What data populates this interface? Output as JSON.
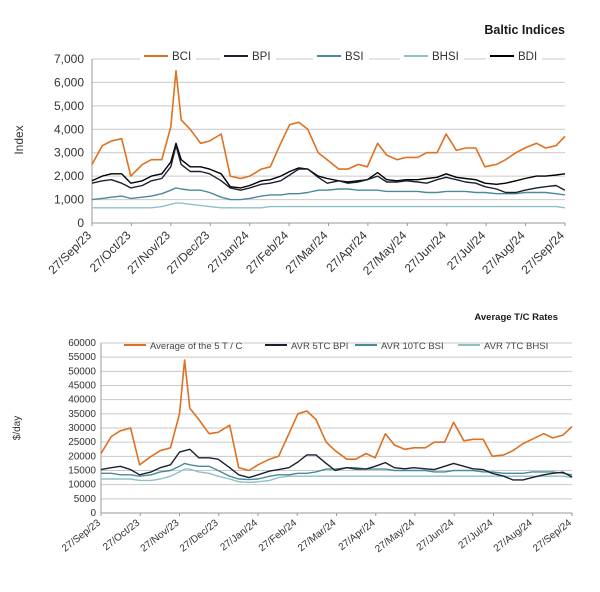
{
  "chart_data": [
    {
      "type": "line",
      "title": "Baltic Indices",
      "ylabel": "Index",
      "xlabel": "",
      "ylim": [
        0,
        7000
      ],
      "yticks": [
        "0",
        "1,000",
        "2,000",
        "3,000",
        "4,000",
        "5,000",
        "6,000",
        "7,000"
      ],
      "grid": true,
      "legend_position": "top",
      "x_ticks": [
        "27/Sep/23",
        "27/Oct/23",
        "27/Nov/23",
        "27/Dec/23",
        "27/Jan/24",
        "27/Feb/24",
        "27/Mar/24",
        "27/Apr/24",
        "27/May/24",
        "27/Jun/24",
        "27/Jul/24",
        "27/Aug/24",
        "27/Sep/24"
      ],
      "x": [
        "2023-09-27",
        "2023-10-05",
        "2023-10-12",
        "2023-10-20",
        "2023-10-27",
        "2023-11-05",
        "2023-11-12",
        "2023-11-20",
        "2023-11-27",
        "2023-12-01",
        "2023-12-05",
        "2023-12-12",
        "2023-12-20",
        "2023-12-27",
        "2024-01-05",
        "2024-01-12",
        "2024-01-20",
        "2024-01-27",
        "2024-02-05",
        "2024-02-12",
        "2024-02-20",
        "2024-02-27",
        "2024-03-05",
        "2024-03-12",
        "2024-03-20",
        "2024-03-27",
        "2024-04-05",
        "2024-04-12",
        "2024-04-20",
        "2024-04-27",
        "2024-05-05",
        "2024-05-12",
        "2024-05-20",
        "2024-05-27",
        "2024-06-05",
        "2024-06-12",
        "2024-06-20",
        "2024-06-27",
        "2024-07-05",
        "2024-07-12",
        "2024-07-20",
        "2024-07-27",
        "2024-08-05",
        "2024-08-12",
        "2024-08-20",
        "2024-08-27",
        "2024-09-05",
        "2024-09-12",
        "2024-09-20",
        "2024-09-27"
      ],
      "series": [
        {
          "name": "BCI",
          "color": "#e07020",
          "values": [
            2500,
            3300,
            3500,
            3600,
            2000,
            2500,
            2700,
            2700,
            4100,
            6500,
            4400,
            4000,
            3400,
            3500,
            3800,
            2000,
            1900,
            2000,
            2300,
            2400,
            3400,
            4200,
            4300,
            4000,
            3000,
            2700,
            2300,
            2300,
            2500,
            2400,
            3400,
            2900,
            2700,
            2800,
            2800,
            3000,
            3000,
            3800,
            3100,
            3200,
            3200,
            2400,
            2500,
            2700,
            3000,
            3200,
            3400,
            3200,
            3300,
            3700
          ]
        },
        {
          "name": "BPI",
          "color": "#1a2030",
          "values": [
            1700,
            1800,
            1850,
            1700,
            1500,
            1600,
            1800,
            1900,
            2400,
            3300,
            2500,
            2200,
            2200,
            2100,
            1800,
            1500,
            1400,
            1500,
            1650,
            1700,
            1800,
            2050,
            2300,
            2300,
            1950,
            1700,
            1800,
            1700,
            1750,
            1850,
            2000,
            1750,
            1750,
            1800,
            1750,
            1700,
            1850,
            1950,
            1850,
            1750,
            1700,
            1550,
            1450,
            1300,
            1300,
            1400,
            1500,
            1550,
            1600,
            1400
          ]
        },
        {
          "name": "BSI",
          "color": "#4a8a9a",
          "values": [
            1000,
            1050,
            1100,
            1150,
            1050,
            1100,
            1150,
            1250,
            1400,
            1500,
            1450,
            1400,
            1400,
            1300,
            1100,
            1000,
            1000,
            1050,
            1150,
            1200,
            1200,
            1250,
            1250,
            1300,
            1400,
            1400,
            1450,
            1450,
            1400,
            1400,
            1400,
            1350,
            1350,
            1350,
            1350,
            1300,
            1300,
            1350,
            1350,
            1350,
            1300,
            1300,
            1250,
            1250,
            1250,
            1300,
            1300,
            1300,
            1250,
            1200
          ]
        },
        {
          "name": "BHSI",
          "color": "#8fc0c8",
          "values": [
            650,
            650,
            650,
            650,
            650,
            650,
            650,
            700,
            800,
            850,
            850,
            800,
            750,
            700,
            650,
            650,
            650,
            650,
            650,
            700,
            700,
            700,
            700,
            700,
            700,
            700,
            700,
            700,
            700,
            700,
            700,
            700,
            700,
            700,
            700,
            700,
            700,
            700,
            700,
            700,
            700,
            700,
            700,
            700,
            700,
            700,
            700,
            700,
            700,
            650
          ]
        },
        {
          "name": "BDI",
          "color": "#000000",
          "values": [
            1800,
            2000,
            2100,
            2100,
            1700,
            1800,
            2000,
            2100,
            2600,
            3400,
            2700,
            2400,
            2400,
            2300,
            2100,
            1550,
            1500,
            1600,
            1800,
            1850,
            2000,
            2200,
            2350,
            2300,
            2000,
            1900,
            1800,
            1750,
            1800,
            1850,
            2150,
            1850,
            1800,
            1850,
            1850,
            1900,
            1950,
            2100,
            1950,
            1900,
            1850,
            1700,
            1650,
            1700,
            1800,
            1900,
            2000,
            2000,
            2050,
            2100
          ]
        }
      ]
    },
    {
      "type": "line",
      "title": "Average T/C Rates",
      "ylabel": "$/day",
      "xlabel": "",
      "ylim": [
        0,
        60000
      ],
      "yticks": [
        "0",
        "5000",
        "10000",
        "15000",
        "20000",
        "25000",
        "30000",
        "35000",
        "40000",
        "45000",
        "50000",
        "55000",
        "60000"
      ],
      "grid": true,
      "legend_position": "top",
      "x_ticks": [
        "27/Sep/23",
        "27/Oct/23",
        "27/Nov/23",
        "27/Dec/23",
        "27/Jan/24",
        "27/Feb/24",
        "27/Mar/24",
        "27/Apr/24",
        "27/May/24",
        "27/Jun/24",
        "27/Jul/24",
        "27/Aug/24",
        "27/Sep/24"
      ],
      "x": [
        "2023-09-27",
        "2023-10-05",
        "2023-10-12",
        "2023-10-20",
        "2023-10-27",
        "2023-11-05",
        "2023-11-12",
        "2023-11-20",
        "2023-11-27",
        "2023-12-01",
        "2023-12-05",
        "2023-12-12",
        "2023-12-20",
        "2023-12-27",
        "2024-01-05",
        "2024-01-12",
        "2024-01-20",
        "2024-01-27",
        "2024-02-05",
        "2024-02-12",
        "2024-02-20",
        "2024-02-27",
        "2024-03-05",
        "2024-03-12",
        "2024-03-20",
        "2024-03-27",
        "2024-04-05",
        "2024-04-12",
        "2024-04-20",
        "2024-04-27",
        "2024-05-05",
        "2024-05-12",
        "2024-05-20",
        "2024-05-27",
        "2024-06-05",
        "2024-06-12",
        "2024-06-20",
        "2024-06-27",
        "2024-07-05",
        "2024-07-12",
        "2024-07-20",
        "2024-07-27",
        "2024-08-05",
        "2024-08-12",
        "2024-08-20",
        "2024-08-27",
        "2024-09-05",
        "2024-09-12",
        "2024-09-20",
        "2024-09-27"
      ],
      "series": [
        {
          "name": "Average of the 5 T / C",
          "color": "#e07020",
          "values": [
            21000,
            27000,
            29000,
            30000,
            17000,
            20000,
            22000,
            23000,
            35000,
            54000,
            37000,
            33000,
            28000,
            28500,
            31000,
            16000,
            15000,
            17000,
            19000,
            20000,
            28000,
            35000,
            36000,
            33000,
            25000,
            22000,
            19000,
            19000,
            21000,
            19500,
            28000,
            24000,
            22500,
            23000,
            23000,
            25000,
            25000,
            32000,
            25500,
            26000,
            26000,
            20000,
            20500,
            22000,
            24500,
            26000,
            28000,
            26500,
            27500,
            30500
          ]
        },
        {
          "name": "AVR 5TC BPI",
          "color": "#1a2030",
          "values": [
            15300,
            16000,
            16500,
            15300,
            13500,
            14500,
            16000,
            17000,
            21500,
            22000,
            22500,
            19500,
            19500,
            19000,
            16000,
            13500,
            12500,
            13500,
            14800,
            15300,
            16000,
            18000,
            20500,
            20500,
            17500,
            15000,
            16000,
            15500,
            15500,
            16500,
            17800,
            16000,
            15600,
            16000,
            15600,
            15300,
            16500,
            17500,
            16500,
            15600,
            15300,
            14000,
            13000,
            11700,
            11700,
            12500,
            13500,
            14000,
            14400,
            12700
          ]
        },
        {
          "name": "AVR 10TC BSI",
          "color": "#4a8a9a",
          "values": [
            14000,
            14000,
            13500,
            13500,
            13000,
            13500,
            14500,
            15000,
            16500,
            17500,
            17000,
            16500,
            16500,
            15000,
            13000,
            12000,
            11800,
            12000,
            13000,
            13500,
            13500,
            14000,
            14000,
            14500,
            15500,
            15500,
            16000,
            16000,
            15500,
            15500,
            15500,
            15000,
            15000,
            15000,
            15000,
            14500,
            14500,
            15000,
            15000,
            15000,
            14500,
            14500,
            14000,
            14000,
            14000,
            14500,
            14500,
            14500,
            14000,
            13500
          ]
        },
        {
          "name": "AVR 7TC BHSI",
          "color": "#8fc0c8",
          "values": [
            12000,
            12000,
            12000,
            12000,
            11500,
            11500,
            12000,
            13000,
            14500,
            15500,
            15500,
            14500,
            14000,
            13000,
            12000,
            11000,
            10800,
            11000,
            11500,
            12500,
            13000,
            13000,
            13000,
            13000,
            13000,
            13000,
            13000,
            13000,
            13000,
            13000,
            13000,
            13000,
            13000,
            13000,
            13000,
            13000,
            13000,
            13000,
            13000,
            13000,
            13000,
            13000,
            13000,
            13000,
            13000,
            13000,
            13000,
            13000,
            13000,
            12500
          ]
        }
      ]
    }
  ]
}
